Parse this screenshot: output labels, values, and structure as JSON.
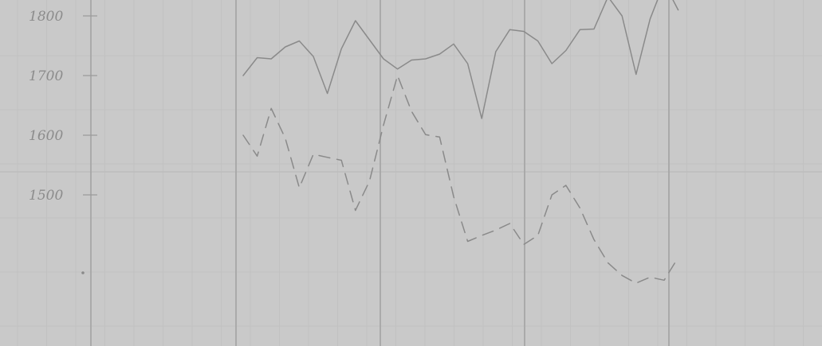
{
  "chart_data": {
    "type": "line",
    "title": "",
    "xlabel": "",
    "ylabel": "",
    "y_ticks": [
      "1800",
      "1700",
      "1600",
      "1500"
    ],
    "ylim": [
      1270,
      1830
    ],
    "xlim": [
      0,
      42
    ],
    "grid": true,
    "colors": {
      "paper": "#c9c9c9",
      "major_grid": "#a3a3a3",
      "minor_grid": "#c1c1c1",
      "line": "#8a8a8a",
      "text": "#8c8c8c"
    },
    "series": [
      {
        "style": "solid",
        "x": [
          11,
          12,
          13,
          14,
          15,
          16,
          17,
          18,
          19,
          20,
          21,
          22,
          23,
          24,
          25,
          26,
          27,
          28,
          29,
          30,
          31,
          32,
          33,
          34,
          35,
          36,
          37,
          38,
          39,
          40,
          41,
          42
        ],
        "y": [
          1700,
          1730,
          1728,
          1748,
          1758,
          1732,
          1670,
          1745,
          1792,
          1760,
          1728,
          1711,
          1726,
          1728,
          1736,
          1753,
          1720,
          1628,
          1740,
          1777,
          1774,
          1758,
          1720,
          1742,
          1777,
          1778,
          1832,
          1800,
          1702,
          1795,
          1855,
          1810
        ]
      },
      {
        "style": "dashed",
        "x": [
          11,
          12,
          13,
          14,
          15,
          16,
          17,
          18,
          19,
          20,
          21,
          22,
          23,
          24,
          25,
          26,
          27,
          28,
          29,
          30,
          31,
          32,
          33,
          34,
          35,
          36,
          37,
          38,
          39,
          40,
          41,
          42
        ],
        "y": [
          1600,
          1565,
          1645,
          1595,
          1512,
          1568,
          1563,
          1558,
          1474,
          1523,
          1617,
          1700,
          1640,
          1601,
          1597,
          1497,
          1422,
          1432,
          1441,
          1452,
          1417,
          1432,
          1500,
          1516,
          1478,
          1425,
          1386,
          1365,
          1352,
          1362,
          1357,
          1395
        ]
      }
    ]
  }
}
